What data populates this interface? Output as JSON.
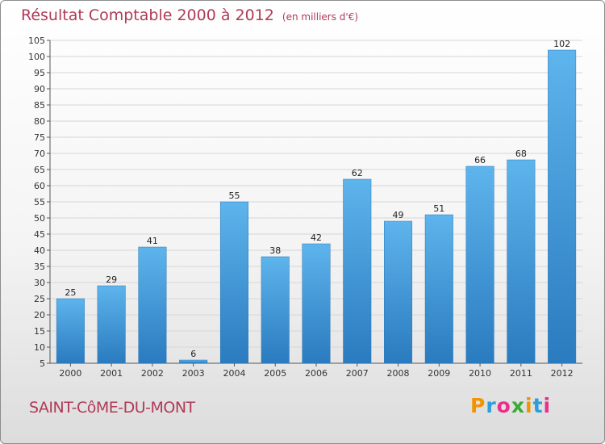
{
  "header": {
    "title": "Résultat Comptable 2000 à 2012",
    "unit": "(en milliers d'€)"
  },
  "footer": {
    "commune": "SAINT-CôME-DU-MONT",
    "logo_text": "Proxiti",
    "logo_letters": [
      "P",
      "r",
      "o",
      "x",
      "i",
      "t",
      "i"
    ],
    "logo_colors": [
      "#f29400",
      "#2a9fd8",
      "#e8308a",
      "#3aaa35",
      "#f29400",
      "#2a9fd8",
      "#e8308a"
    ]
  },
  "chart_data": {
    "type": "bar",
    "title": "Résultat Comptable 2000 à 2012",
    "subtitle": "(en milliers d'€)",
    "xlabel": "",
    "ylabel": "",
    "categories": [
      "2000",
      "2001",
      "2002",
      "2003",
      "2004",
      "2005",
      "2006",
      "2007",
      "2008",
      "2009",
      "2010",
      "2011",
      "2012"
    ],
    "values": [
      25,
      29,
      41,
      6,
      55,
      38,
      42,
      62,
      49,
      51,
      66,
      68,
      102
    ],
    "ylim": [
      5,
      105
    ],
    "yticks": [
      5,
      10,
      15,
      20,
      25,
      30,
      35,
      40,
      45,
      50,
      55,
      60,
      65,
      70,
      75,
      80,
      85,
      90,
      95,
      100,
      105
    ],
    "grid": true,
    "bar_color_top": "#5eb4ec",
    "bar_color_bottom": "#2a7bbf"
  }
}
